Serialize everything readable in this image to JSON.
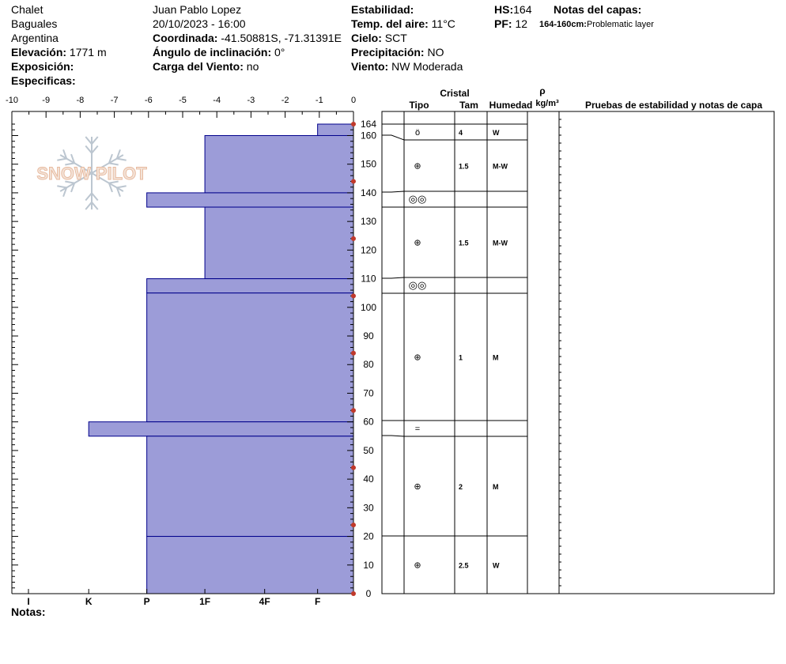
{
  "header": {
    "site": "Chalet",
    "area": "Baguales",
    "country": "Argentina",
    "elevation_label": "Elevación:",
    "elevation_value": "1771 m",
    "aspect_label": "Exposición:",
    "specifics_label": "Especificas:",
    "observer": "Juan Pablo  Lopez",
    "datetime": "20/10/2023 - 16:00",
    "coord_label": "Coordinada:",
    "coord_value": "-41.50881S, -71.31391E",
    "slope_label": "Ángulo de inclinación:",
    "slope_value": "0°",
    "windload_label": "Carga del Viento:",
    "windload_value": "no",
    "stability_label": "Estabilidad:",
    "airtemp_label": "Temp. del aire:",
    "airtemp_value": "11°C",
    "sky_label": "Cielo:",
    "sky_value": "SCT",
    "precip_label": "Precipitación:",
    "precip_value": "NO",
    "wind_label": "Viento:",
    "wind_value": "NW Moderada",
    "hs_label": "HS:",
    "hs_value": "164",
    "pf_label": "PF:",
    "pf_value": "12",
    "layer_notes_label": "Notas del capas:",
    "layer_note_range": "164-160cm:",
    "layer_note_text": "Problematic layer",
    "notes_label": "Notas:"
  },
  "watermark": "SNOW PILOT",
  "columns": {
    "crystal": "Cristal",
    "type": "Tipo",
    "size": "Tam",
    "moisture": "Humedad",
    "rho": "ρ",
    "rho_unit": "kg/m³",
    "tests": "Pruebas de estabilidad y notas de capa"
  },
  "colors": {
    "hardness_fill": "#9c9cd8",
    "layer_line": "#00008b",
    "temp_dot": "#c0392b"
  },
  "chart_data": {
    "type": "bar",
    "temperature_axis": {
      "ticks": [
        "-10",
        "-9",
        "-8",
        "-7",
        "-6",
        "-5",
        "-4",
        "-3",
        "-2",
        "-1",
        "0"
      ],
      "range": [
        -10,
        0
      ]
    },
    "height_axis": {
      "ticks": [
        "164",
        "160",
        "150",
        "140",
        "130",
        "120",
        "110",
        "100",
        "90",
        "80",
        "70",
        "60",
        "50",
        "40",
        "30",
        "20",
        "10",
        "0"
      ],
      "range": [
        0,
        164
      ]
    },
    "hardness_axis": {
      "labels": [
        "I",
        "K",
        "P",
        "1F",
        "4F",
        "F"
      ]
    },
    "layers": [
      {
        "top": 164,
        "bottom": 160,
        "hardness": "F",
        "hardness_value": 1.05
      },
      {
        "top": 160,
        "bottom": 140,
        "hardness": "1F",
        "hardness_value": 4.35
      },
      {
        "top": 140,
        "bottom": 135,
        "hardness": "P",
        "hardness_value": 6.05
      },
      {
        "top": 135,
        "bottom": 110,
        "hardness": "1F",
        "hardness_value": 4.35
      },
      {
        "top": 110,
        "bottom": 105,
        "hardness": "P",
        "hardness_value": 6.05
      },
      {
        "top": 105,
        "bottom": 60,
        "hardness": "P",
        "hardness_value": 6.05
      },
      {
        "top": 60,
        "bottom": 55,
        "hardness": "K",
        "hardness_value": 7.75
      },
      {
        "top": 55,
        "bottom": 20,
        "hardness": "P",
        "hardness_value": 6.05
      },
      {
        "top": 20,
        "bottom": 0,
        "hardness": "P",
        "hardness_value": 6.05
      }
    ],
    "temperature_points": [
      {
        "height": 164,
        "temp": 0
      },
      {
        "height": 144,
        "temp": 0
      },
      {
        "height": 124,
        "temp": 0
      },
      {
        "height": 104,
        "temp": 0
      },
      {
        "height": 84,
        "temp": 0
      },
      {
        "height": 64,
        "temp": 0
      },
      {
        "height": 44,
        "temp": 0
      },
      {
        "height": 24,
        "temp": 0
      },
      {
        "height": 0,
        "temp": 0
      }
    ],
    "grain_rows": [
      {
        "top": 164,
        "bottom": 160,
        "mid": 162,
        "symbol": "ö",
        "size": "4",
        "moisture": "W"
      },
      {
        "top": 160,
        "bottom": 140,
        "mid": 150,
        "symbol": "⊕",
        "size": "1.5",
        "moisture": "M-W"
      },
      {
        "top": 140,
        "bottom": 135,
        "mid": 137.5,
        "symbol": "◎◎",
        "size": "",
        "moisture": ""
      },
      {
        "top": 135,
        "bottom": 110,
        "mid": 122.5,
        "symbol": "⊕",
        "size": "1.5",
        "moisture": "M-W"
      },
      {
        "top": 110,
        "bottom": 105,
        "mid": 107.5,
        "symbol": "◎◎",
        "size": "",
        "moisture": ""
      },
      {
        "top": 105,
        "bottom": 60,
        "mid": 82.5,
        "symbol": "⊕",
        "size": "1",
        "moisture": "M"
      },
      {
        "top": 60,
        "bottom": 55,
        "mid": 57.5,
        "symbol": "=",
        "size": "",
        "moisture": ""
      },
      {
        "top": 55,
        "bottom": 20,
        "mid": 37.5,
        "symbol": "⊕",
        "size": "2",
        "moisture": "M"
      },
      {
        "top": 20,
        "bottom": 0,
        "mid": 10,
        "symbol": "⊕",
        "size": "2.5",
        "moisture": "W"
      }
    ]
  }
}
